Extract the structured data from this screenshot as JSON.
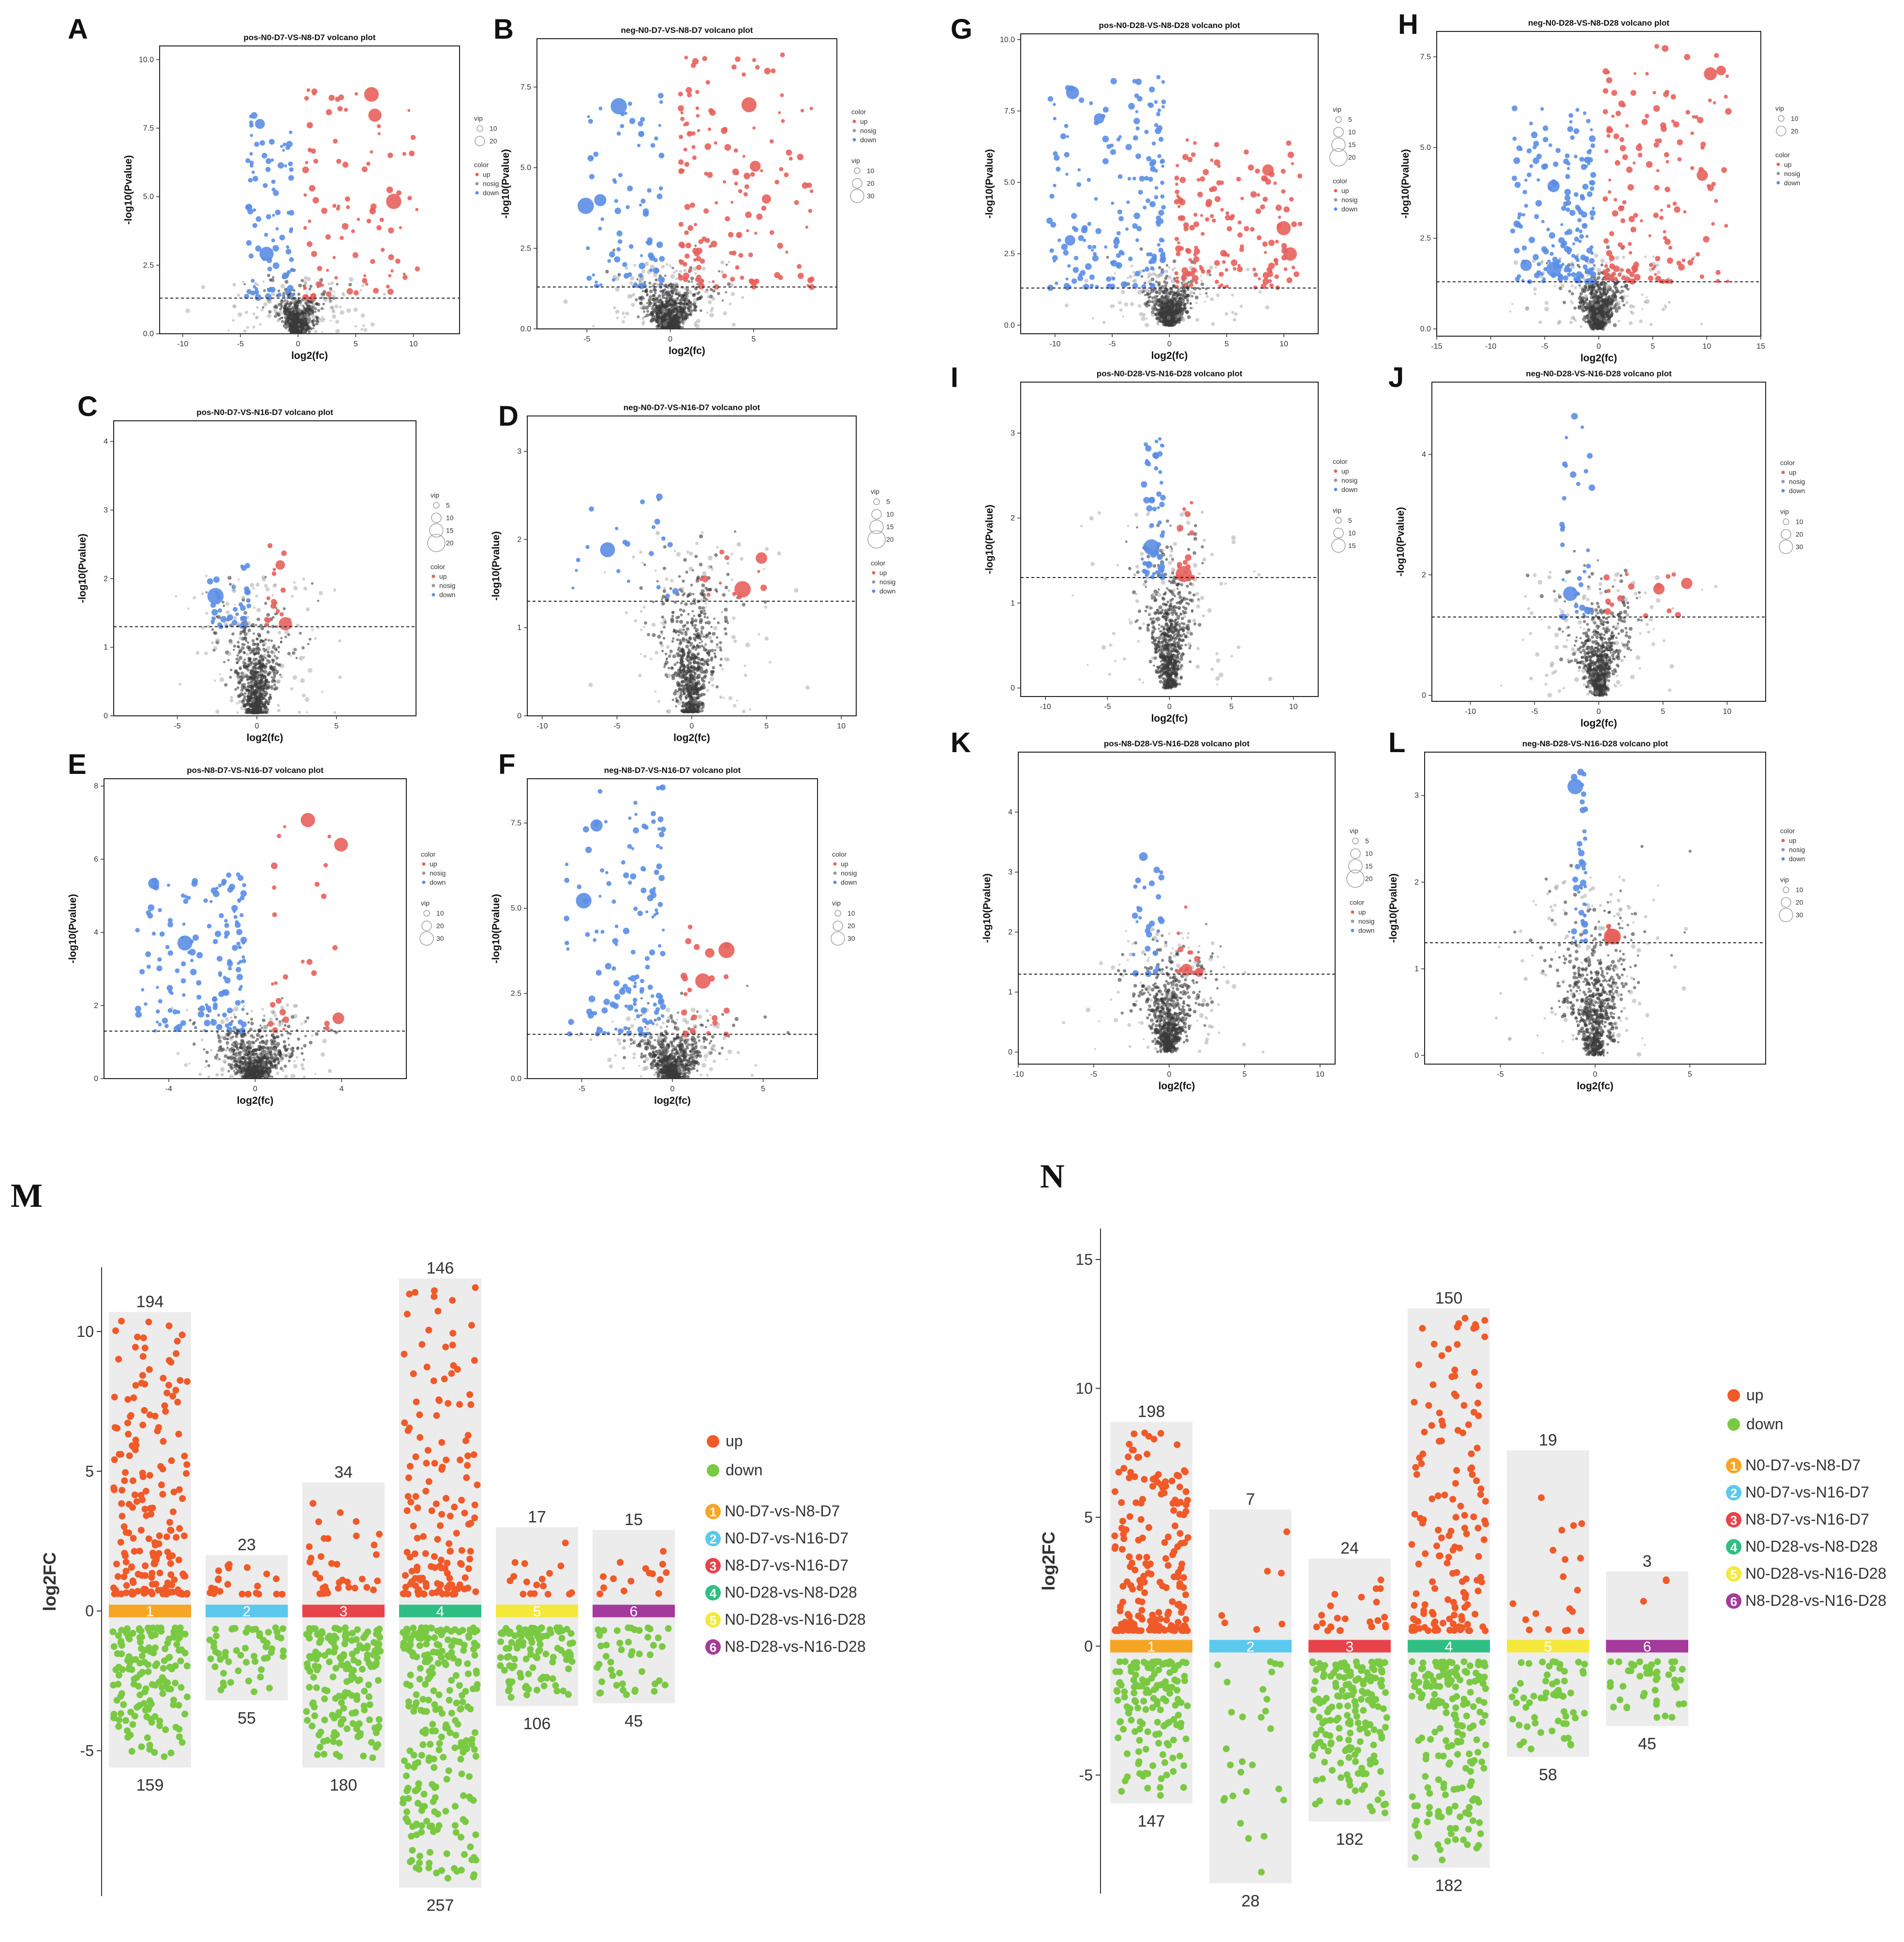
{
  "figure": {
    "volcano_panels": [
      "A",
      "B",
      "C",
      "D",
      "E",
      "F",
      "G",
      "H",
      "I",
      "J",
      "K",
      "L"
    ],
    "strip_panels": [
      "M",
      "N"
    ]
  },
  "colors": {
    "up": "#e8615c",
    "down": "#5b8ee6",
    "nosig": "#9a9a9a",
    "dense": "#3a3a3a",
    "strip_up": "#f05a28",
    "strip_down": "#7ac943",
    "strip_bg": "#ececec",
    "groups": [
      "#f5a623",
      "#5bc8ee",
      "#e8434a",
      "#2fbf84",
      "#f4e93b",
      "#a53a9c"
    ]
  },
  "chart_data": [
    {
      "panel": "A",
      "type": "scatter",
      "title": "pos-N0-D7-VS-N8-D7 volcano plot",
      "xlabel": "log2(fc)",
      "ylabel": "-log10(Pvalue)",
      "xlim": [
        -12,
        14
      ],
      "ylim": [
        0,
        10.5
      ],
      "xticks": [
        -10,
        -5,
        0,
        5,
        10
      ],
      "xtick_labels": [
        "-10",
        "-5",
        "0",
        "5",
        "10"
      ],
      "yticks": [
        0,
        2.5,
        5,
        7.5,
        10
      ],
      "ytick_labels": [
        "0.0",
        "2.5",
        "5.0",
        "7.5",
        "10.0"
      ],
      "threshold": 1.3,
      "legend": [
        {
          "title": "vip",
          "sizes": [
            "10",
            "20"
          ]
        },
        {
          "title": "color",
          "labels": [
            "up",
            "nosig",
            "down"
          ]
        }
      ],
      "up_max_x": 10.5,
      "up_max_y": 9,
      "down_min_x": -4.5,
      "down_max_y": 8,
      "n_up": 90,
      "n_down": 90,
      "big_points": 5,
      "seed": 1
    },
    {
      "panel": "B",
      "type": "scatter",
      "title": "neg-N0-D7-VS-N8-D7 volcano plot",
      "xlabel": "log2(fc)",
      "ylabel": "-log10(Pvalue)",
      "xlim": [
        -8,
        10
      ],
      "ylim": [
        0,
        9
      ],
      "xticks": [
        -5,
        0,
        5
      ],
      "xtick_labels": [
        "-5",
        "0",
        "5"
      ],
      "yticks": [
        0,
        2.5,
        5,
        7.5
      ],
      "ytick_labels": [
        "0.0",
        "2.5",
        "5.0",
        "7.5"
      ],
      "threshold": 1.3,
      "legend": [
        {
          "title": "color",
          "labels": [
            "up",
            "nosig",
            "down"
          ]
        },
        {
          "title": "vip",
          "sizes": [
            "10",
            "20",
            "30"
          ]
        }
      ],
      "up_max_x": 8.5,
      "up_max_y": 8.5,
      "down_min_x": -5.5,
      "down_max_y": 7.5,
      "n_up": 150,
      "n_down": 80,
      "big_points": 6,
      "seed": 2
    },
    {
      "panel": "C",
      "type": "scatter",
      "title": "pos-N0-D7-VS-N16-D7 volcano plot",
      "xlabel": "log2(fc)",
      "ylabel": "-log10(Pvalue)",
      "xlim": [
        -9,
        10
      ],
      "ylim": [
        0,
        4.3
      ],
      "xticks": [
        -5,
        0,
        5
      ],
      "xtick_labels": [
        "-5",
        "0",
        "5"
      ],
      "yticks": [
        0,
        1,
        2,
        3,
        4
      ],
      "ytick_labels": [
        "0",
        "1",
        "2",
        "3",
        "4"
      ],
      "threshold": 1.3,
      "legend": [
        {
          "title": "vip",
          "sizes": [
            "5",
            "10",
            "15",
            "20"
          ]
        },
        {
          "title": "color",
          "labels": [
            "up",
            "nosig",
            "down"
          ]
        }
      ],
      "up_max_x": 1.8,
      "up_max_y": 2.5,
      "down_min_x": -3,
      "down_max_y": 2.2,
      "n_up": 15,
      "n_down": 35,
      "big_points": 3,
      "seed": 3
    },
    {
      "panel": "D",
      "type": "scatter",
      "title": "neg-N0-D7-VS-N16-D7 volcano plot",
      "xlabel": "log2(fc)",
      "ylabel": "-log10(Pvalue)",
      "xlim": [
        -11,
        11
      ],
      "ylim": [
        0,
        3.4
      ],
      "xticks": [
        -10,
        -5,
        0,
        5,
        10
      ],
      "xtick_labels": [
        "-10",
        "-5",
        "0",
        "5",
        "10"
      ],
      "yticks": [
        0,
        1,
        2,
        3
      ],
      "ytick_labels": [
        "0",
        "1",
        "2",
        "3"
      ],
      "threshold": 1.3,
      "legend": [
        {
          "title": "vip",
          "sizes": [
            "5",
            "10",
            "15",
            "20"
          ]
        },
        {
          "title": "color",
          "labels": [
            "up",
            "nosig",
            "down"
          ]
        }
      ],
      "up_max_x": 5,
      "up_max_y": 1.9,
      "down_min_x": -9,
      "down_max_y": 2.8,
      "n_up": 10,
      "n_down": 20,
      "big_points": 3,
      "seed": 4
    },
    {
      "panel": "E",
      "type": "scatter",
      "title": "pos-N8-D7-VS-N16-D7 volcano plot",
      "xlabel": "log2(fc)",
      "ylabel": "-log10(Pvalue)",
      "xlim": [
        -7,
        7
      ],
      "ylim": [
        0,
        8.2
      ],
      "xticks": [
        -4,
        0,
        4
      ],
      "xtick_labels": [
        "-4",
        "0",
        "4"
      ],
      "yticks": [
        0,
        2,
        4,
        6,
        8
      ],
      "ytick_labels": [
        "0",
        "2",
        "4",
        "6",
        "8"
      ],
      "threshold": 1.3,
      "legend": [
        {
          "title": "color",
          "labels": [
            "up",
            "nosig",
            "down"
          ]
        },
        {
          "title": "vip",
          "sizes": [
            "10",
            "20",
            "30"
          ]
        }
      ],
      "up_max_x": 4,
      "up_max_y": 7.3,
      "down_min_x": -5.5,
      "down_max_y": 5.6,
      "n_up": 25,
      "n_down": 150,
      "big_points": 5,
      "seed": 5
    },
    {
      "panel": "F",
      "type": "scatter",
      "title": "neg-N8-D7-VS-N16-D7 volcano plot",
      "xlabel": "log2(fc)",
      "ylabel": "-log10(Pvalue)",
      "xlim": [
        -8,
        8
      ],
      "ylim": [
        0,
        8.8
      ],
      "xticks": [
        -5,
        0,
        5
      ],
      "xtick_labels": [
        "-5",
        "0",
        "5"
      ],
      "yticks": [
        0,
        2.5,
        5,
        7.5
      ],
      "ytick_labels": [
        "0.0",
        "2.5",
        "5.0",
        "7.5"
      ],
      "threshold": 1.3,
      "legend": [
        {
          "title": "color",
          "labels": [
            "up",
            "nosig",
            "down"
          ]
        },
        {
          "title": "vip",
          "sizes": [
            "10",
            "20",
            "30"
          ]
        }
      ],
      "up_max_x": 3,
      "up_max_y": 4.5,
      "down_min_x": -6,
      "down_max_y": 8.6,
      "n_up": 20,
      "n_down": 140,
      "big_points": 5,
      "seed": 6
    },
    {
      "panel": "G",
      "type": "scatter",
      "title": "pos-N0-D28-VS-N8-D28 volcano plot",
      "xlabel": "log2(fc)",
      "ylabel": "-log10(Pvalue)",
      "xlim": [
        -13,
        13
      ],
      "ylim": [
        -0.3,
        10.2
      ],
      "xticks": [
        -10,
        -5,
        0,
        5,
        10
      ],
      "xtick_labels": [
        "-10",
        "-5",
        "0",
        "5",
        "10"
      ],
      "yticks": [
        0,
        2.5,
        5,
        7.5,
        10
      ],
      "ytick_labels": [
        "0.0",
        "2.5",
        "5.0",
        "7.5",
        "10.0"
      ],
      "threshold": 1.3,
      "legend": [
        {
          "title": "vip",
          "sizes": [
            "5",
            "10",
            "15",
            "20"
          ]
        },
        {
          "title": "color",
          "labels": [
            "up",
            "nosig",
            "down"
          ]
        }
      ],
      "up_max_x": 11.5,
      "up_max_y": 6.5,
      "down_min_x": -10.5,
      "down_max_y": 8.7,
      "n_up": 160,
      "n_down": 180,
      "big_points": 6,
      "seed": 7
    },
    {
      "panel": "H",
      "type": "scatter",
      "title": "neg-N0-D28-VS-N8-D28 volcano plot",
      "xlabel": "log2(fc)",
      "ylabel": "-log10(Pvalue)",
      "xlim": [
        -15,
        15
      ],
      "ylim": [
        -0.2,
        8.2
      ],
      "xticks": [
        -15,
        -10,
        -5,
        0,
        5,
        10,
        15
      ],
      "xtick_labels": [
        "-15",
        "-10",
        "-5",
        "0",
        "5",
        "10",
        "15"
      ],
      "yticks": [
        0,
        2.5,
        5,
        7.5
      ],
      "ytick_labels": [
        "0.0",
        "2.5",
        "5.0",
        "7.5"
      ],
      "threshold": 1.3,
      "legend": [
        {
          "title": "vip",
          "sizes": [
            "10",
            "20"
          ]
        },
        {
          "title": "color",
          "labels": [
            "up",
            "nosig",
            "down"
          ]
        }
      ],
      "up_max_x": 12,
      "up_max_y": 7.8,
      "down_min_x": -8,
      "down_max_y": 6.1,
      "n_up": 160,
      "n_down": 180,
      "big_points": 6,
      "seed": 8
    },
    {
      "panel": "I",
      "type": "scatter",
      "title": "pos-N0-D28-VS-N16-D28 volcano plot",
      "xlabel": "log2(fc)",
      "ylabel": "-log10(Pvalue)",
      "xlim": [
        -12,
        12
      ],
      "ylim": [
        -0.1,
        3.6
      ],
      "xticks": [
        -10,
        -5,
        0,
        5,
        10
      ],
      "xtick_labels": [
        "-10",
        "-5",
        "0",
        "5",
        "10"
      ],
      "yticks": [
        0,
        1,
        2,
        3
      ],
      "ytick_labels": [
        "0",
        "1",
        "2",
        "3"
      ],
      "threshold": 1.3,
      "legend": [
        {
          "title": "color",
          "labels": [
            "up",
            "nosig",
            "down"
          ]
        },
        {
          "title": "vip",
          "sizes": [
            "5",
            "10",
            "15"
          ]
        }
      ],
      "up_max_x": 2,
      "up_max_y": 2.3,
      "down_min_x": -2.2,
      "down_max_y": 3.1,
      "n_up": 12,
      "n_down": 55,
      "big_points": 2,
      "seed": 9
    },
    {
      "panel": "J",
      "type": "scatter",
      "title": "neg-N0-D28-VS-N16-D28 volcano plot",
      "xlabel": "log2(fc)",
      "ylabel": "-log10(Pvalue)",
      "xlim": [
        -13,
        13
      ],
      "ylim": [
        -0.1,
        5.2
      ],
      "xticks": [
        -10,
        -5,
        0,
        5,
        10
      ],
      "xtick_labels": [
        "-10",
        "-5",
        "0",
        "5",
        "10"
      ],
      "yticks": [
        0,
        2,
        4
      ],
      "ytick_labels": [
        "0",
        "2",
        "4"
      ],
      "threshold": 1.3,
      "legend": [
        {
          "title": "color",
          "labels": [
            "up",
            "nosig",
            "down"
          ]
        },
        {
          "title": "vip",
          "sizes": [
            "10",
            "20",
            "30"
          ]
        }
      ],
      "up_max_x": 7,
      "up_max_y": 2.4,
      "down_min_x": -3,
      "down_max_y": 4.7,
      "n_up": 14,
      "n_down": 35,
      "big_points": 3,
      "seed": 10
    },
    {
      "panel": "K",
      "type": "scatter",
      "title": "pos-N8-D28-VS-N16-D28 volcano plot",
      "xlabel": "log2(fc)",
      "ylabel": "-log10(Pvalue)",
      "xlim": [
        -10,
        11
      ],
      "ylim": [
        -0.2,
        5
      ],
      "xticks": [
        -10,
        -5,
        0,
        5,
        10
      ],
      "xtick_labels": [
        "-10",
        "-5",
        "0",
        "5",
        "10"
      ],
      "yticks": [
        0,
        1,
        2,
        3,
        4
      ],
      "ytick_labels": [
        "0",
        "1",
        "2",
        "3",
        "4"
      ],
      "threshold": 1.3,
      "legend": [
        {
          "title": "vip",
          "sizes": [
            "5",
            "10",
            "15",
            "20"
          ]
        },
        {
          "title": "color",
          "labels": [
            "up",
            "nosig",
            "down"
          ]
        }
      ],
      "up_max_x": 2,
      "up_max_y": 2.6,
      "down_min_x": -2.5,
      "down_max_y": 3.3,
      "n_up": 10,
      "n_down": 30,
      "big_points": 3,
      "seed": 11
    },
    {
      "panel": "L",
      "type": "scatter",
      "title": "neg-N8-D28-VS-N16-D28 volcano plot",
      "xlabel": "log2(fc)",
      "ylabel": "-log10(Pvalue)",
      "xlim": [
        -9,
        9
      ],
      "ylim": [
        -0.1,
        3.5
      ],
      "xticks": [
        -5,
        0,
        5
      ],
      "xtick_labels": [
        "-5",
        "0",
        "5"
      ],
      "yticks": [
        0,
        1,
        2,
        3
      ],
      "ytick_labels": [
        "0",
        "1",
        "2",
        "3"
      ],
      "threshold": 1.3,
      "legend": [
        {
          "title": "color",
          "labels": [
            "up",
            "nosig",
            "down"
          ]
        },
        {
          "title": "vip",
          "sizes": [
            "10",
            "20",
            "30"
          ]
        }
      ],
      "up_max_x": 1,
      "up_max_y": 1.6,
      "down_min_x": -1.2,
      "down_max_y": 3.3,
      "n_up": 6,
      "n_down": 40,
      "big_points": 3,
      "seed": 12
    },
    {
      "panel": "M",
      "type": "scatter",
      "subtype": "strip",
      "ylabel": "log2FC",
      "ylim": [
        -10.2,
        12.3
      ],
      "yticks": [
        10,
        5,
        0,
        -5
      ],
      "ytick_labels": [
        "10",
        "5",
        "0",
        "-5"
      ],
      "legend": [
        "up",
        "down"
      ],
      "groups": [
        {
          "id": "1",
          "name": "N0-D7-vs-N8-D7",
          "up": 194,
          "down": 159,
          "up_max": 10.7,
          "down_min": -5.6
        },
        {
          "id": "2",
          "name": "N0-D7-vs-N16-D7",
          "up": 23,
          "down": 55,
          "up_max": 2.0,
          "down_min": -3.2
        },
        {
          "id": "3",
          "name": "N8-D7-vs-N16-D7",
          "up": 34,
          "down": 180,
          "up_max": 4.6,
          "down_min": -5.6
        },
        {
          "id": "4",
          "name": "N0-D28-vs-N8-D28",
          "up": 146,
          "down": 257,
          "up_max": 11.9,
          "down_min": -9.9
        },
        {
          "id": "5",
          "name": "N0-D28-vs-N16-D28",
          "up": 17,
          "down": 106,
          "up_max": 3.0,
          "down_min": -3.4
        },
        {
          "id": "6",
          "name": "N8-D28-vs-N16-D28",
          "up": 15,
          "down": 45,
          "up_max": 2.9,
          "down_min": -3.3
        }
      ]
    },
    {
      "panel": "N",
      "type": "scatter",
      "subtype": "strip",
      "ylabel": "log2FC",
      "ylim": [
        -9.6,
        16.2
      ],
      "yticks": [
        15,
        10,
        5,
        0,
        -5
      ],
      "ytick_labels": [
        "15",
        "10",
        "5",
        "0",
        "-5"
      ],
      "legend": [
        "up",
        "down"
      ],
      "groups": [
        {
          "id": "1",
          "name": "N0-D7-vs-N8-D7",
          "up": 198,
          "down": 147,
          "up_max": 8.7,
          "down_min": -6.1
        },
        {
          "id": "2",
          "name": "N0-D7-vs-N16-D7",
          "up": 7,
          "down": 28,
          "up_max": 5.3,
          "down_min": -9.2
        },
        {
          "id": "3",
          "name": "N8-D7-vs-N16-D7",
          "up": 24,
          "down": 182,
          "up_max": 3.4,
          "down_min": -6.8
        },
        {
          "id": "4",
          "name": "N0-D28-vs-N8-D28",
          "up": 150,
          "down": 182,
          "up_max": 13.1,
          "down_min": -8.6
        },
        {
          "id": "5",
          "name": "N0-D28-vs-N16-D28",
          "up": 19,
          "down": 58,
          "up_max": 7.6,
          "down_min": -4.3
        },
        {
          "id": "6",
          "name": "N8-D28-vs-N16-D28",
          "up": 3,
          "down": 45,
          "up_max": 2.9,
          "down_min": -3.1
        }
      ]
    }
  ]
}
